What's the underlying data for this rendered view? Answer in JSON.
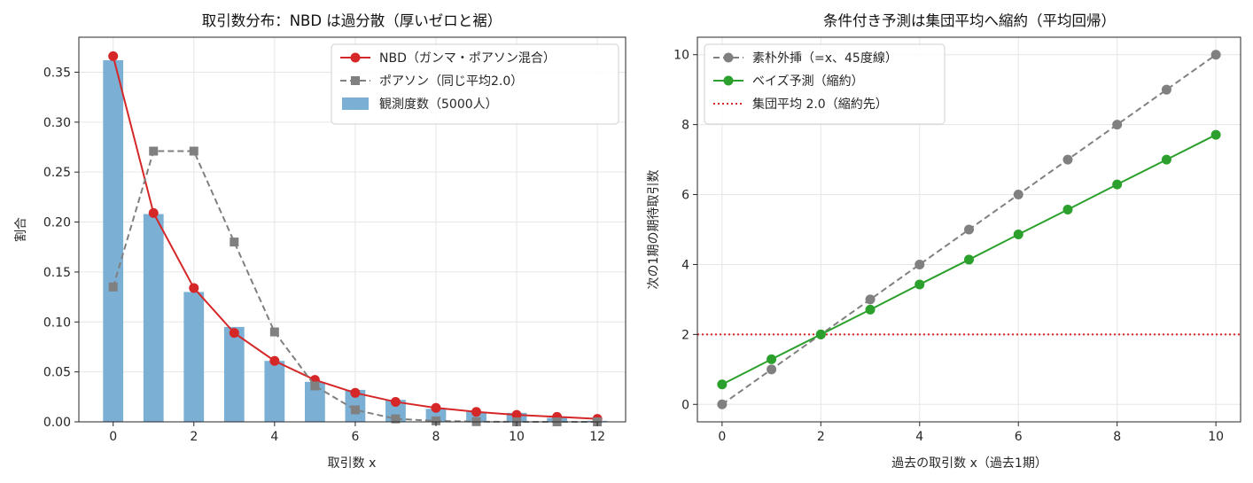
{
  "chart_data": [
    {
      "type": "bar",
      "title": "取引数分布：NBD は過分散（厚いゼロと裾）",
      "xlabel": "取引数 x",
      "ylabel": "割合",
      "xlim": [
        -0.85,
        12.7
      ],
      "ylim": [
        0,
        0.385
      ],
      "xticks": [
        0,
        2,
        4,
        6,
        8,
        10,
        12
      ],
      "yticks": [
        0.0,
        0.05,
        0.1,
        0.15,
        0.2,
        0.25,
        0.3,
        0.35
      ],
      "ytick_labels": [
        "0.00",
        "0.05",
        "0.10",
        "0.15",
        "0.20",
        "0.25",
        "0.30",
        "0.35"
      ],
      "grid": true,
      "legend_position": "top-right",
      "bars": {
        "name": "観測度数（5000人）",
        "color": "#7bafd4",
        "x": [
          0,
          1,
          2,
          3,
          4,
          5,
          6,
          7,
          8,
          9,
          10,
          11,
          12
        ],
        "values": [
          0.362,
          0.208,
          0.13,
          0.095,
          0.061,
          0.04,
          0.032,
          0.022,
          0.013,
          0.01,
          0.009,
          0.004,
          0.001
        ]
      },
      "series": [
        {
          "name": "NBD（ガンマ・ポアソン混合）",
          "color": "#d62728",
          "style": "solid",
          "marker": "circle",
          "x": [
            0,
            1,
            2,
            3,
            4,
            5,
            6,
            7,
            8,
            9,
            10,
            11,
            12
          ],
          "values": [
            0.366,
            0.209,
            0.134,
            0.089,
            0.061,
            0.042,
            0.029,
            0.02,
            0.014,
            0.01,
            0.007,
            0.005,
            0.003
          ]
        },
        {
          "name": "ポアソン（同じ平均2.0）",
          "color": "#808080",
          "style": "dashed",
          "marker": "square",
          "x": [
            0,
            1,
            2,
            3,
            4,
            5,
            6,
            7,
            8,
            9,
            10,
            11,
            12
          ],
          "values": [
            0.135,
            0.271,
            0.271,
            0.18,
            0.09,
            0.036,
            0.012,
            0.003,
            0.001,
            0.0002,
            4e-05,
            1e-05,
            0.0
          ]
        }
      ]
    },
    {
      "type": "line",
      "title": "条件付き予測は集団平均へ縮約（平均回帰）",
      "xlabel": "過去の取引数 x（過去1期）",
      "ylabel": "次の1期の期待取引数",
      "xlim": [
        -0.5,
        10.5
      ],
      "ylim": [
        -0.5,
        10.5
      ],
      "xticks": [
        0,
        2,
        4,
        6,
        8,
        10
      ],
      "yticks": [
        0,
        2,
        4,
        6,
        8,
        10
      ],
      "grid": true,
      "legend_position": "top-left",
      "series": [
        {
          "name": "素朴外挿（=x、45度線）",
          "color": "#808080",
          "style": "dashed",
          "marker": "circle",
          "x": [
            0,
            1,
            2,
            3,
            4,
            5,
            6,
            7,
            8,
            9,
            10
          ],
          "values": [
            0,
            1,
            2,
            3,
            4,
            5,
            6,
            7,
            8,
            9,
            10
          ]
        },
        {
          "name": "ベイズ予測（縮約）",
          "color": "#2ca02c",
          "style": "solid",
          "marker": "circle",
          "x": [
            0,
            1,
            2,
            3,
            4,
            5,
            6,
            7,
            8,
            9,
            10
          ],
          "values": [
            0.57,
            1.29,
            2.0,
            2.71,
            3.43,
            4.14,
            4.86,
            5.57,
            6.29,
            7.0,
            7.71
          ]
        }
      ],
      "hlines": [
        {
          "name": "集団平均 2.0（縮約先）",
          "y": 2.0,
          "color": "#d62728",
          "style": "dotted"
        }
      ]
    }
  ]
}
